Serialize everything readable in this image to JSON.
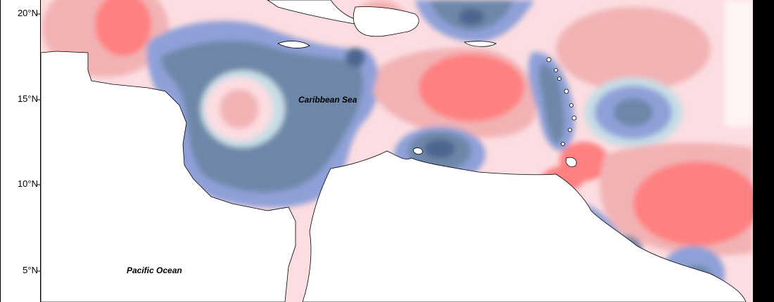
{
  "axis": {
    "lat_labels": [
      "20°N",
      "15°N",
      "10°N",
      "5°N"
    ]
  },
  "labels": {
    "caribbean": "Caribbean Sea",
    "pacific": "Pacific Ocean"
  },
  "colors": {
    "frame_black": "#000000",
    "land": "#ffffff",
    "red_strong": "#ff8080",
    "red_mid": "#f2b2b4",
    "red_light": "#fcdde1",
    "neutral": "#fff4f4",
    "blue_light": "#c8dde6",
    "blue_mid": "#8fa0d8",
    "blue_dark": "#6e87a8",
    "blue_darkest": "#4e6690"
  }
}
